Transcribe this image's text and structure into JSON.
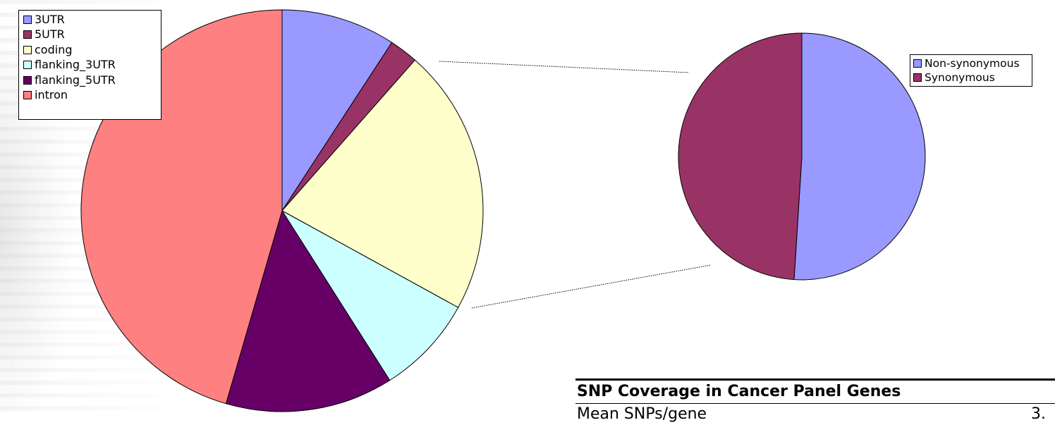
{
  "chart_data": [
    {
      "type": "pie",
      "title": "",
      "slices": [
        {
          "label": "3UTR",
          "value": 9.2,
          "color": "#9999ff"
        },
        {
          "label": "5UTR",
          "value": 2.3,
          "color": "#993366"
        },
        {
          "label": "coding",
          "value": 21.5,
          "color": "#ffffcc"
        },
        {
          "label": "flanking_3UTR",
          "value": 8.0,
          "color": "#ccffff"
        },
        {
          "label": "flanking_5UTR",
          "value": 13.5,
          "color": "#660066"
        },
        {
          "label": "intron",
          "value": 45.5,
          "color": "#ff8080"
        }
      ],
      "legend_placement": "top-left"
    },
    {
      "type": "pie",
      "title": "",
      "slices": [
        {
          "label": "Non-synonymous",
          "value": 51.0,
          "color": "#9999ff"
        },
        {
          "label": "Synonymous",
          "value": 49.0,
          "color": "#993366"
        }
      ],
      "legend_placement": "top-right"
    }
  ],
  "legend_main": [
    "3UTR",
    "5UTR",
    "coding",
    "flanking_3UTR",
    "flanking_5UTR",
    "intron"
  ],
  "legend_sub": [
    "Non-synonymous",
    "Synonymous"
  ],
  "panel": {
    "title": "SNP Coverage in Cancer Panel Genes",
    "row_label": "Mean SNPs/gene",
    "row_value": "3."
  }
}
